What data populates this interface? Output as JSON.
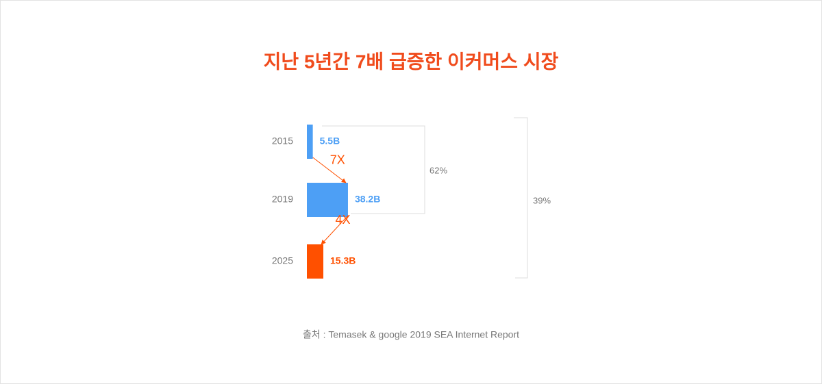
{
  "chart_data": {
    "type": "bar",
    "orientation": "horizontal",
    "title": "지난 5년간 7배 급증한 이커머스 시장",
    "categories": [
      "2015",
      "2019",
      "2025"
    ],
    "values": [
      5.5,
      38.2,
      15.3
    ],
    "value_labels": [
      "5.5B",
      "38.2B",
      "15.3B"
    ],
    "colors": [
      "#4d9ff5",
      "#4d9ff5",
      "#ff5000"
    ],
    "growth_labels": [
      "7X",
      "4X"
    ],
    "share_labels": [
      "62%",
      "39%"
    ],
    "source": "출처 : Temasek & google 2019 SEA Internet Report"
  }
}
